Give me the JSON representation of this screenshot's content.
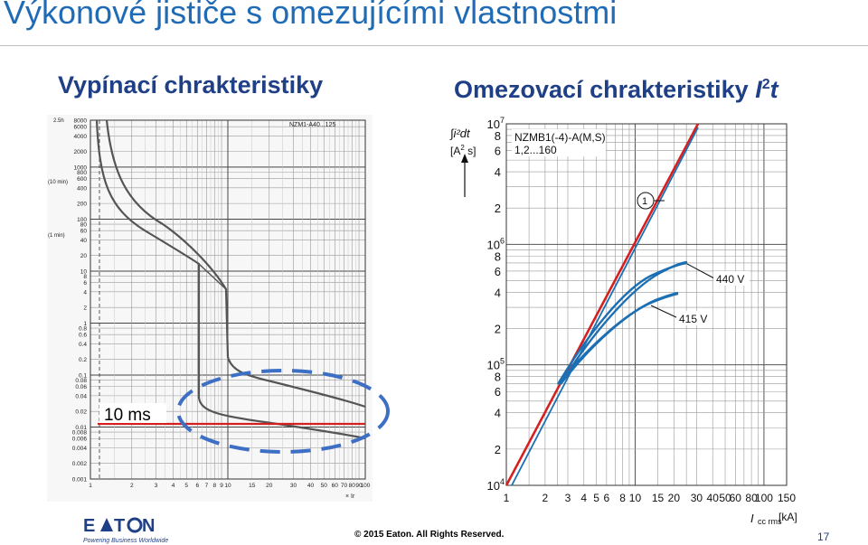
{
  "slide": {
    "title": "Výkonové jističe s omezujícími vlastnostmi",
    "left_subtitle": "Vypínací chrakteristiky",
    "right_subtitle_main": "Omezovací chrakteristiky ",
    "right_subtitle_symbol": "I",
    "right_subtitle_sup": "2",
    "right_subtitle_end": "t",
    "copyright": "© 2015 Eaton. All Rights Reserved.",
    "page_number": "17",
    "logo_text": "E·T·N",
    "logo_tagline": "Powering Business Worldwide"
  },
  "left_chart": {
    "model_label": "NZM1-A40...125",
    "top_unit_label": "2.5h",
    "y_ticks": [
      "8000",
      "6000",
      "4000",
      "2000",
      "1000",
      "800",
      "600",
      "400",
      "200",
      "100",
      "80",
      "60",
      "40",
      "20",
      "10",
      "8",
      "6",
      "4",
      "2",
      "1",
      "0.8",
      "0.6",
      "0.4",
      "0.2",
      "0.1",
      "0.08",
      "0.06",
      "0.04",
      "0.02",
      "0.01",
      "0.008",
      "0.006",
      "0.004",
      "0.002",
      "0.001"
    ],
    "y_side_label_10min": "(10 min)",
    "y_side_label_1min": "(1 min)",
    "x_ticks": [
      "1",
      "2",
      "3",
      "4",
      "5",
      "6",
      "7",
      "8",
      "9",
      "10",
      "15",
      "20",
      "30",
      "40",
      "50",
      "60",
      "70",
      "80",
      "90",
      "100"
    ],
    "x_axis_label": "× Ir",
    "annotation": "10 ms"
  },
  "right_chart": {
    "model_label_line1": "NZMB1(-4)-A(M,S)",
    "model_label_line2": "1,2...160",
    "y_axis_label_line1": "∫i²dt",
    "y_axis_label_line2": "[A",
    "y_axis_label_sup": "2",
    "y_axis_label_line3": " s]",
    "y_ticks": [
      {
        "base": "10",
        "exp": "7"
      },
      {
        "base": "8"
      },
      {
        "base": "6"
      },
      {
        "base": "4"
      },
      {
        "base": "2"
      },
      {
        "base": "10",
        "exp": "6"
      },
      {
        "base": "8"
      },
      {
        "base": "6"
      },
      {
        "base": "4"
      },
      {
        "base": "2"
      },
      {
        "base": "10",
        "exp": "5"
      },
      {
        "base": "8"
      },
      {
        "base": "6"
      },
      {
        "base": "4"
      },
      {
        "base": "2"
      },
      {
        "base": "10",
        "exp": "4"
      }
    ],
    "x_ticks": [
      "1",
      "2",
      "3",
      "4",
      "5",
      "6",
      "8",
      "10",
      "15",
      "20",
      "30",
      "40",
      "50",
      "60",
      "80",
      "100",
      "150"
    ],
    "x_axis_label": "I",
    "x_axis_sub": "cc rms",
    "x_axis_unit": "[kA]",
    "label_440": "440 V",
    "label_415": "415 V",
    "circle_marker": "1"
  },
  "colors": {
    "title_blue": "#1f6bb5",
    "subtitle_navy": "#1f3f86",
    "red_line": "#d62020",
    "curve_blue": "#1c6fb3",
    "dash_blue": "#3d6fc4"
  }
}
